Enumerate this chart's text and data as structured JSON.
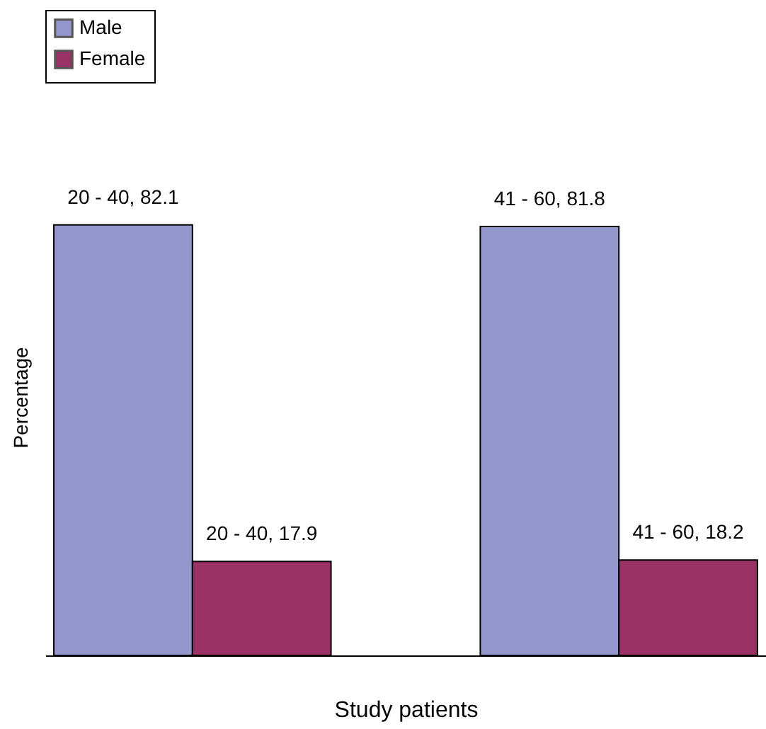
{
  "chart_data": {
    "type": "bar",
    "xlabel": "Study patients",
    "ylabel": "Percentage",
    "categories": [
      null,
      null
    ],
    "series": [
      {
        "name": "Male",
        "color": "#9497cb",
        "values": [
          82.1,
          81.8
        ],
        "value_labels": [
          "20 - 40, 82.1",
          "41 - 60, 81.8"
        ]
      },
      {
        "name": "Female",
        "color": "#993366",
        "values": [
          17.9,
          18.2
        ],
        "value_labels": [
          "20 - 40, 17.9",
          "41 - 60, 18.2"
        ]
      }
    ],
    "legend": "top",
    "grid": false
  }
}
